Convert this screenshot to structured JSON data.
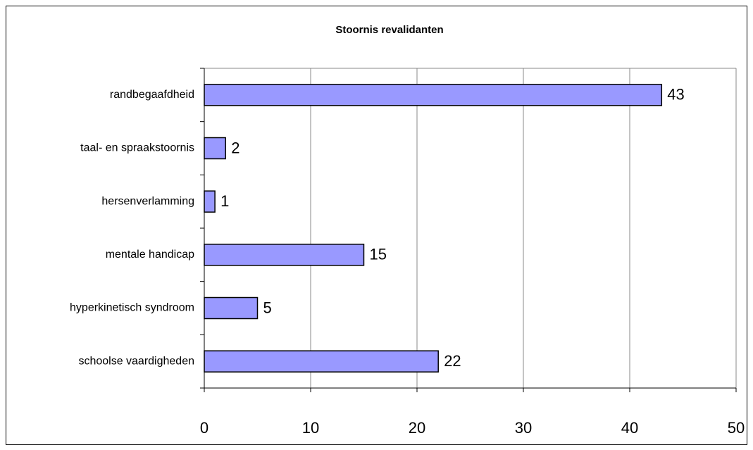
{
  "chart_data": {
    "type": "bar",
    "orientation": "horizontal",
    "title": "Stoornis revalidanten",
    "categories": [
      "randbegaafdheid",
      "taal- en spraakstoornis",
      "hersenverlamming",
      "mentale handicap",
      "hyperkinetisch syndroom",
      "schoolse vaardigheden"
    ],
    "values": [
      43,
      2,
      1,
      15,
      5,
      22
    ],
    "color": "#9999ff",
    "xlim": [
      0,
      50
    ],
    "xticks": [
      0,
      10,
      20,
      30,
      40,
      50
    ],
    "grid": true
  }
}
